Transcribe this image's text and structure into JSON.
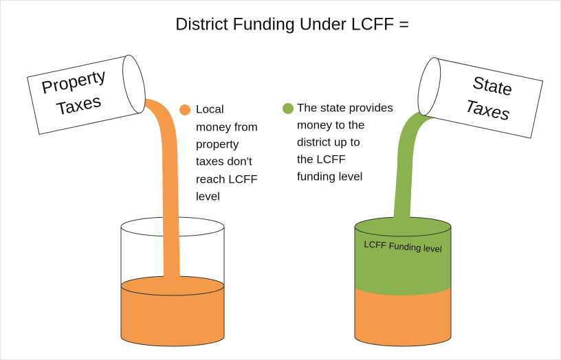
{
  "header": {
    "title": "District Funding Under LCFF ="
  },
  "left": {
    "cup_label": [
      "Property",
      "Taxes"
    ],
    "note": [
      "Local",
      "money from",
      "property",
      "taxes don't",
      "reach LCFF",
      "level"
    ]
  },
  "right": {
    "cup_label": [
      "State",
      "Taxes"
    ],
    "note": [
      "The state provides",
      "money to the",
      "district up to",
      "the LCFF",
      "funding level"
    ],
    "glass_label": "LCFF Funding level"
  }
}
